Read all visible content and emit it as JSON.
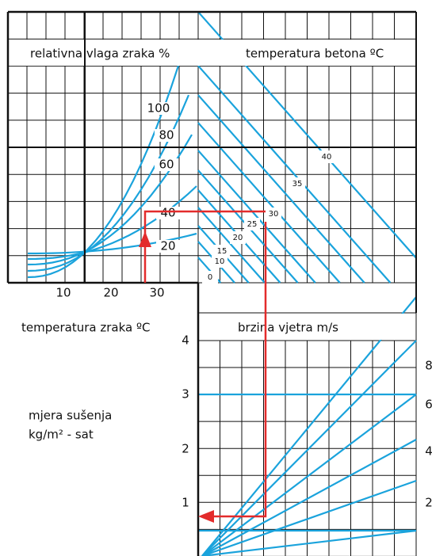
{
  "humidity_axis": {
    "title": "relativna vlaga zraka %",
    "labels": [
      "100",
      "80",
      "60",
      "40",
      "20"
    ]
  },
  "concrete_temperature": {
    "title": "temperatura betona ºC",
    "labels": [
      "40",
      "35",
      "30",
      "25",
      "20",
      "15",
      "10",
      "0"
    ]
  },
  "air_temperature": {
    "title": "temperatura zraka ºC",
    "ticks": [
      "10",
      "20",
      "30"
    ]
  },
  "wind_speed": {
    "title": "brzina vjetra m/s",
    "labels": [
      "8",
      "6",
      "4",
      "2"
    ]
  },
  "evaporation_rate": {
    "title": [
      "mjera sušenja",
      "kg/m² - sat"
    ],
    "ticks": [
      "4",
      "3",
      "2",
      "1"
    ]
  }
}
